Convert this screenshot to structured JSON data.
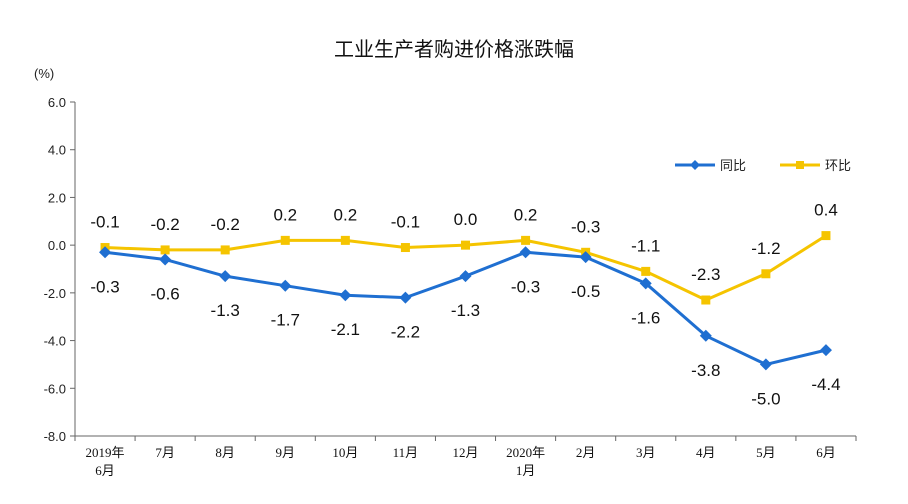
{
  "chart_data": {
    "type": "line",
    "title": "工业生产者购进价格涨跌幅",
    "unit_label": "(%)",
    "xlabel": "",
    "ylabel": "",
    "ylim": [
      -8.0,
      6.0
    ],
    "yticks": [
      "6.0",
      "4.0",
      "2.0",
      "0.0",
      "-2.0",
      "-4.0",
      "-6.0",
      "-8.0"
    ],
    "ytick_values": [
      6,
      4,
      2,
      0,
      -2,
      -4,
      -6,
      -8
    ],
    "categories": [
      [
        "2019年",
        "6月"
      ],
      [
        "7月"
      ],
      [
        "8月"
      ],
      [
        "9月"
      ],
      [
        "10月"
      ],
      [
        "11月"
      ],
      [
        "12月"
      ],
      [
        "2020年",
        "1月"
      ],
      [
        "2月"
      ],
      [
        "3月"
      ],
      [
        "4月"
      ],
      [
        "5月"
      ],
      [
        "6月"
      ]
    ],
    "grid": false,
    "legend_position": "top-right",
    "series": [
      {
        "name": "同比",
        "color": "#1f6fd1",
        "marker": "diamond",
        "values": [
          -0.3,
          -0.6,
          -1.3,
          -1.7,
          -2.1,
          -2.2,
          -1.3,
          -0.3,
          -0.5,
          -1.6,
          -3.8,
          -5.0,
          -4.4
        ],
        "labels": [
          "-0.3",
          "-0.6",
          "-1.3",
          "-1.7",
          "-2.1",
          "-2.2",
          "-1.3",
          "-0.3",
          "-0.5",
          "-1.6",
          "-3.8",
          "-5.0",
          "-4.4"
        ]
      },
      {
        "name": "环比",
        "color": "#f5c400",
        "marker": "square",
        "values": [
          -0.1,
          -0.2,
          -0.2,
          0.2,
          0.2,
          -0.1,
          0.0,
          0.2,
          -0.3,
          -1.1,
          -2.3,
          -1.2,
          0.4
        ],
        "labels": [
          "-0.1",
          "-0.2",
          "-0.2",
          "0.2",
          "0.2",
          "-0.1",
          "0.0",
          "0.2",
          "-0.3",
          "-1.1",
          "-2.3",
          "-1.2",
          "0.4"
        ]
      }
    ]
  }
}
